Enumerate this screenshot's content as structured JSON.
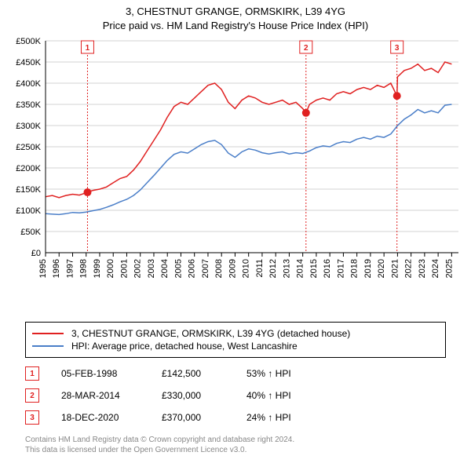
{
  "title_line1": "3, CHESTNUT GRANGE, ORMSKIRK, L39 4YG",
  "title_line2": "Price paid vs. HM Land Registry's House Price Index (HPI)",
  "chart": {
    "type": "line",
    "background_color": "#ffffff",
    "grid_color": "#d3d3d3",
    "axis_color": "#000000",
    "tick_fontsize": 11,
    "x": {
      "min": 1995,
      "max": 2025.5,
      "ticks": [
        1995,
        1996,
        1997,
        1998,
        1999,
        2000,
        2001,
        2002,
        2003,
        2004,
        2005,
        2006,
        2007,
        2008,
        2009,
        2010,
        2011,
        2012,
        2013,
        2014,
        2015,
        2016,
        2017,
        2018,
        2019,
        2020,
        2021,
        2022,
        2023,
        2024,
        2025
      ]
    },
    "y": {
      "min": 0,
      "max": 500000,
      "ticks": [
        0,
        50000,
        100000,
        150000,
        200000,
        250000,
        300000,
        350000,
        400000,
        450000,
        500000
      ],
      "tick_labels": [
        "£0",
        "£50K",
        "£100K",
        "£150K",
        "£200K",
        "£250K",
        "£300K",
        "£350K",
        "£400K",
        "£450K",
        "£500K"
      ]
    },
    "series": [
      {
        "name": "property",
        "color": "#e02020",
        "line_width": 1.5,
        "data": [
          [
            1995,
            132000
          ],
          [
            1995.5,
            135000
          ],
          [
            1996,
            130000
          ],
          [
            1996.5,
            135000
          ],
          [
            1997,
            138000
          ],
          [
            1997.5,
            136000
          ],
          [
            1998.1,
            142500
          ],
          [
            1998.5,
            147000
          ],
          [
            1999,
            150000
          ],
          [
            1999.5,
            155000
          ],
          [
            2000,
            165000
          ],
          [
            2000.5,
            175000
          ],
          [
            2001,
            180000
          ],
          [
            2001.5,
            195000
          ],
          [
            2002,
            215000
          ],
          [
            2002.5,
            240000
          ],
          [
            2003,
            265000
          ],
          [
            2003.5,
            290000
          ],
          [
            2004,
            320000
          ],
          [
            2004.5,
            345000
          ],
          [
            2005,
            355000
          ],
          [
            2005.5,
            350000
          ],
          [
            2006,
            365000
          ],
          [
            2006.5,
            380000
          ],
          [
            2007,
            395000
          ],
          [
            2007.5,
            400000
          ],
          [
            2008,
            385000
          ],
          [
            2008.5,
            355000
          ],
          [
            2009,
            340000
          ],
          [
            2009.5,
            360000
          ],
          [
            2010,
            370000
          ],
          [
            2010.5,
            365000
          ],
          [
            2011,
            355000
          ],
          [
            2011.5,
            350000
          ],
          [
            2012,
            355000
          ],
          [
            2012.5,
            360000
          ],
          [
            2013,
            350000
          ],
          [
            2013.5,
            355000
          ],
          [
            2014,
            340000
          ],
          [
            2014.24,
            330000
          ],
          [
            2014.5,
            350000
          ],
          [
            2015,
            360000
          ],
          [
            2015.5,
            365000
          ],
          [
            2016,
            360000
          ],
          [
            2016.5,
            375000
          ],
          [
            2017,
            380000
          ],
          [
            2017.5,
            375000
          ],
          [
            2018,
            385000
          ],
          [
            2018.5,
            390000
          ],
          [
            2019,
            385000
          ],
          [
            2019.5,
            395000
          ],
          [
            2020,
            390000
          ],
          [
            2020.5,
            400000
          ],
          [
            2020.96,
            370000
          ],
          [
            2021,
            415000
          ],
          [
            2021.5,
            430000
          ],
          [
            2022,
            435000
          ],
          [
            2022.5,
            445000
          ],
          [
            2023,
            430000
          ],
          [
            2023.5,
            435000
          ],
          [
            2024,
            425000
          ],
          [
            2024.5,
            450000
          ],
          [
            2025,
            445000
          ]
        ]
      },
      {
        "name": "hpi",
        "color": "#4a7ec8",
        "line_width": 1.5,
        "data": [
          [
            1995,
            92000
          ],
          [
            1995.5,
            91000
          ],
          [
            1996,
            90000
          ],
          [
            1996.5,
            92000
          ],
          [
            1997,
            95000
          ],
          [
            1997.5,
            94000
          ],
          [
            1998,
            96000
          ],
          [
            1998.5,
            99000
          ],
          [
            1999,
            102000
          ],
          [
            1999.5,
            107000
          ],
          [
            2000,
            113000
          ],
          [
            2000.5,
            120000
          ],
          [
            2001,
            126000
          ],
          [
            2001.5,
            135000
          ],
          [
            2002,
            148000
          ],
          [
            2002.5,
            165000
          ],
          [
            2003,
            182000
          ],
          [
            2003.5,
            200000
          ],
          [
            2004,
            218000
          ],
          [
            2004.5,
            232000
          ],
          [
            2005,
            238000
          ],
          [
            2005.5,
            235000
          ],
          [
            2006,
            245000
          ],
          [
            2006.5,
            255000
          ],
          [
            2007,
            262000
          ],
          [
            2007.5,
            265000
          ],
          [
            2008,
            255000
          ],
          [
            2008.5,
            235000
          ],
          [
            2009,
            225000
          ],
          [
            2009.5,
            238000
          ],
          [
            2010,
            245000
          ],
          [
            2010.5,
            242000
          ],
          [
            2011,
            236000
          ],
          [
            2011.5,
            233000
          ],
          [
            2012,
            236000
          ],
          [
            2012.5,
            238000
          ],
          [
            2013,
            233000
          ],
          [
            2013.5,
            236000
          ],
          [
            2014,
            234000
          ],
          [
            2014.5,
            240000
          ],
          [
            2015,
            248000
          ],
          [
            2015.5,
            252000
          ],
          [
            2016,
            250000
          ],
          [
            2016.5,
            258000
          ],
          [
            2017,
            262000
          ],
          [
            2017.5,
            260000
          ],
          [
            2018,
            268000
          ],
          [
            2018.5,
            272000
          ],
          [
            2019,
            268000
          ],
          [
            2019.5,
            275000
          ],
          [
            2020,
            272000
          ],
          [
            2020.5,
            280000
          ],
          [
            2021,
            300000
          ],
          [
            2021.5,
            315000
          ],
          [
            2022,
            325000
          ],
          [
            2022.5,
            338000
          ],
          [
            2023,
            330000
          ],
          [
            2023.5,
            335000
          ],
          [
            2024,
            330000
          ],
          [
            2024.5,
            348000
          ],
          [
            2025,
            350000
          ]
        ]
      }
    ],
    "transaction_markers": [
      {
        "n": "1",
        "year": 1998.1,
        "price": 142500,
        "color": "#e02020"
      },
      {
        "n": "2",
        "year": 2014.24,
        "price": 330000,
        "color": "#e02020"
      },
      {
        "n": "3",
        "year": 2020.96,
        "price": 370000,
        "color": "#e02020"
      }
    ]
  },
  "legend": {
    "items": [
      {
        "color": "#e02020",
        "label": "3, CHESTNUT GRANGE, ORMSKIRK, L39 4YG (detached house)"
      },
      {
        "color": "#4a7ec8",
        "label": "HPI: Average price, detached house, West Lancashire"
      }
    ]
  },
  "transactions": [
    {
      "n": "1",
      "date": "05-FEB-1998",
      "price": "£142,500",
      "diff": "53% ↑ HPI",
      "color": "#e02020"
    },
    {
      "n": "2",
      "date": "28-MAR-2014",
      "price": "£330,000",
      "diff": "40% ↑ HPI",
      "color": "#e02020"
    },
    {
      "n": "3",
      "date": "18-DEC-2020",
      "price": "£370,000",
      "diff": "24% ↑ HPI",
      "color": "#e02020"
    }
  ],
  "footer_line1": "Contains HM Land Registry data © Crown copyright and database right 2024.",
  "footer_line2": "This data is licensed under the Open Government Licence v3.0."
}
